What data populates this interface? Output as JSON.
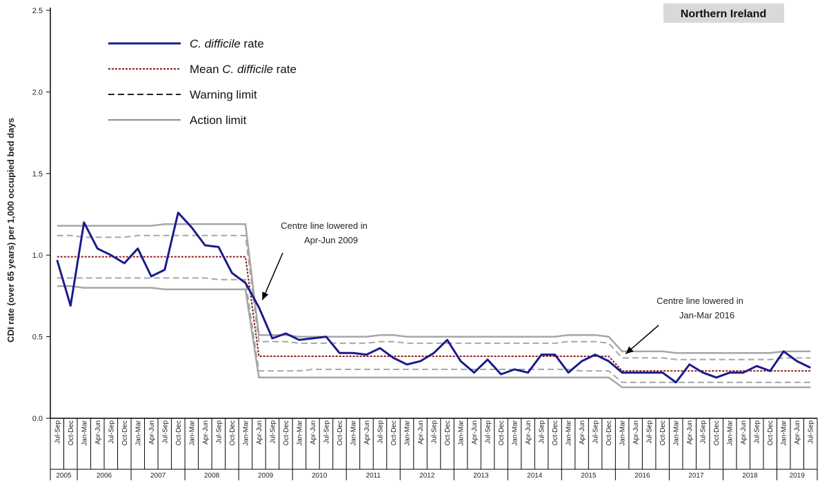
{
  "chart_data": {
    "type": "line",
    "title": "Northern Ireland",
    "ylabel": "CDI rate (over 65 years) per 1,000 occupied bed days",
    "xlabel": "",
    "ylim": [
      0,
      2.5
    ],
    "yticks": [
      "0.0",
      "0.5",
      "1.0",
      "1.5",
      "2.0",
      "2.5"
    ],
    "grid": false,
    "legend_position": "top-left",
    "quarters": [
      "Jul-Sep",
      "Oct-Dec",
      "Jan-Mar",
      "Apr-Jun",
      "Jul-Sep",
      "Oct-Dec",
      "Jan-Mar",
      "Apr-Jun",
      "Jul-Sep",
      "Oct-Dec",
      "Jan-Mar",
      "Apr-Jun",
      "Jul-Sep",
      "Oct-Dec",
      "Jan-Mar",
      "Apr-Jun",
      "Jul-Sep",
      "Oct-Dec",
      "Jan-Mar",
      "Apr-Jun",
      "Jul-Sep",
      "Oct-Dec",
      "Jan-Mar",
      "Apr-Jun",
      "Jul-Sep",
      "Oct-Dec",
      "Jan-Mar",
      "Apr-Jun",
      "Jul-Sep",
      "Oct-Dec",
      "Jan-Mar",
      "Apr-Jun",
      "Jul-Sep",
      "Oct-Dec",
      "Jan-Mar",
      "Apr-Jun",
      "Jul-Sep",
      "Oct-Dec",
      "Jan-Mar",
      "Apr-Jun",
      "Jul-Sep",
      "Oct-Dec",
      "Jan-Mar",
      "Apr-Jun",
      "Jul-Sep",
      "Oct-Dec",
      "Jan-Mar",
      "Apr-Jun",
      "Jul-Sep",
      "Oct-Dec",
      "Jan-Mar",
      "Apr-Jun",
      "Jul-Sep",
      "Oct-Dec",
      "Jan-Mar",
      "Apr-Jun",
      "Jul-Sep"
    ],
    "years": [
      {
        "label": "2005",
        "count": 2
      },
      {
        "label": "2006",
        "count": 4
      },
      {
        "label": "2007",
        "count": 4
      },
      {
        "label": "2008",
        "count": 4
      },
      {
        "label": "2009",
        "count": 4
      },
      {
        "label": "2010",
        "count": 4
      },
      {
        "label": "2011",
        "count": 4
      },
      {
        "label": "2012",
        "count": 4
      },
      {
        "label": "2013",
        "count": 4
      },
      {
        "label": "2014",
        "count": 4
      },
      {
        "label": "2015",
        "count": 4
      },
      {
        "label": "2016",
        "count": 4
      },
      {
        "label": "2017",
        "count": 4
      },
      {
        "label": "2018",
        "count": 4
      },
      {
        "label": "2019",
        "count": 3
      }
    ],
    "series": [
      {
        "name": "C. difficile rate",
        "color": "#1a1a8c",
        "style": "solid",
        "values": [
          0.97,
          0.69,
          1.2,
          1.04,
          1.0,
          0.95,
          1.04,
          0.87,
          0.91,
          1.26,
          1.17,
          1.06,
          1.05,
          0.89,
          0.83,
          0.68,
          0.49,
          0.52,
          0.48,
          0.49,
          0.5,
          0.4,
          0.4,
          0.39,
          0.43,
          0.37,
          0.33,
          0.35,
          0.4,
          0.48,
          0.35,
          0.28,
          0.36,
          0.27,
          0.3,
          0.28,
          0.39,
          0.39,
          0.28,
          0.35,
          0.39,
          0.35,
          0.28,
          0.28,
          0.28,
          0.28,
          0.22,
          0.33,
          0.28,
          0.25,
          0.28,
          0.28,
          0.32,
          0.29,
          0.41,
          0.35,
          0.31
        ]
      },
      {
        "name": "Mean C. difficile rate",
        "color": "#8b1a1a",
        "style": "dotted",
        "values": [
          0.99,
          0.99,
          0.99,
          0.99,
          0.99,
          0.99,
          0.99,
          0.99,
          0.99,
          0.99,
          0.99,
          0.99,
          0.99,
          0.99,
          0.99,
          0.38,
          0.38,
          0.38,
          0.38,
          0.38,
          0.38,
          0.38,
          0.38,
          0.38,
          0.38,
          0.38,
          0.38,
          0.38,
          0.38,
          0.38,
          0.38,
          0.38,
          0.38,
          0.38,
          0.38,
          0.38,
          0.38,
          0.38,
          0.38,
          0.38,
          0.38,
          0.38,
          0.29,
          0.29,
          0.29,
          0.29,
          0.29,
          0.29,
          0.29,
          0.29,
          0.29,
          0.29,
          0.29,
          0.29,
          0.29,
          0.29,
          0.29
        ]
      },
      {
        "name": "Warning limit",
        "color": "#a6a6a6",
        "style": "dashed",
        "upper": [
          1.12,
          1.12,
          1.11,
          1.11,
          1.11,
          1.11,
          1.12,
          1.12,
          1.12,
          1.12,
          1.12,
          1.12,
          1.12,
          1.12,
          1.12,
          0.47,
          0.47,
          0.47,
          0.46,
          0.46,
          0.46,
          0.46,
          0.46,
          0.46,
          0.47,
          0.47,
          0.46,
          0.46,
          0.46,
          0.46,
          0.46,
          0.46,
          0.46,
          0.46,
          0.46,
          0.46,
          0.46,
          0.46,
          0.47,
          0.47,
          0.47,
          0.46,
          0.37,
          0.37,
          0.37,
          0.37,
          0.36,
          0.36,
          0.36,
          0.36,
          0.36,
          0.36,
          0.36,
          0.36,
          0.37,
          0.37,
          0.37
        ],
        "lower": [
          0.86,
          0.86,
          0.86,
          0.86,
          0.86,
          0.86,
          0.86,
          0.86,
          0.86,
          0.86,
          0.86,
          0.86,
          0.85,
          0.85,
          0.85,
          0.29,
          0.29,
          0.29,
          0.29,
          0.3,
          0.3,
          0.3,
          0.3,
          0.3,
          0.3,
          0.3,
          0.3,
          0.3,
          0.3,
          0.3,
          0.3,
          0.3,
          0.3,
          0.3,
          0.3,
          0.3,
          0.3,
          0.3,
          0.3,
          0.29,
          0.29,
          0.29,
          0.22,
          0.22,
          0.22,
          0.22,
          0.22,
          0.22,
          0.22,
          0.22,
          0.22,
          0.22,
          0.22,
          0.22,
          0.22,
          0.22,
          0.22
        ]
      },
      {
        "name": "Action limit",
        "color": "#a6a6a6",
        "style": "solid",
        "upper": [
          1.18,
          1.18,
          1.18,
          1.18,
          1.18,
          1.18,
          1.18,
          1.18,
          1.19,
          1.19,
          1.19,
          1.19,
          1.19,
          1.19,
          1.19,
          0.51,
          0.51,
          0.51,
          0.5,
          0.5,
          0.5,
          0.5,
          0.5,
          0.5,
          0.51,
          0.51,
          0.5,
          0.5,
          0.5,
          0.5,
          0.5,
          0.5,
          0.5,
          0.5,
          0.5,
          0.5,
          0.5,
          0.5,
          0.51,
          0.51,
          0.51,
          0.5,
          0.41,
          0.41,
          0.41,
          0.41,
          0.4,
          0.4,
          0.4,
          0.4,
          0.4,
          0.4,
          0.4,
          0.4,
          0.41,
          0.41,
          0.41
        ],
        "lower": [
          0.81,
          0.81,
          0.8,
          0.8,
          0.8,
          0.8,
          0.8,
          0.8,
          0.79,
          0.79,
          0.79,
          0.79,
          0.79,
          0.79,
          0.79,
          0.25,
          0.25,
          0.25,
          0.25,
          0.25,
          0.25,
          0.25,
          0.25,
          0.25,
          0.25,
          0.25,
          0.25,
          0.25,
          0.25,
          0.25,
          0.25,
          0.25,
          0.25,
          0.25,
          0.25,
          0.25,
          0.25,
          0.25,
          0.25,
          0.25,
          0.25,
          0.25,
          0.19,
          0.19,
          0.19,
          0.19,
          0.19,
          0.19,
          0.19,
          0.19,
          0.19,
          0.19,
          0.19,
          0.19,
          0.19,
          0.19,
          0.19
        ]
      }
    ],
    "legend": [
      {
        "parts": [
          {
            "text": "C. difficile",
            "italic": true
          },
          {
            "text": "  rate",
            "italic": false
          }
        ],
        "style": "solid",
        "color": "#1a1a8c"
      },
      {
        "parts": [
          {
            "text": "Mean ",
            "italic": false
          },
          {
            "text": "C. difficile",
            "italic": true
          },
          {
            "text": "  rate",
            "italic": false
          }
        ],
        "style": "dotted",
        "color": "#8b1a1a"
      },
      {
        "parts": [
          {
            "text": "Warning limit",
            "italic": false
          }
        ],
        "style": "dashed",
        "color": "#222222"
      },
      {
        "parts": [
          {
            "text": "Action limit",
            "italic": false
          }
        ],
        "style": "solid",
        "color": "#444444"
      }
    ],
    "annotations": [
      {
        "lines": [
          "Centre line lowered in",
          "Apr-Jun 2009"
        ],
        "point_index": 15,
        "point_value": 0.75
      },
      {
        "lines": [
          "Centre line lowered in",
          "Jan-Mar 2016"
        ],
        "point_index": 42,
        "point_value": 0.42
      }
    ]
  }
}
